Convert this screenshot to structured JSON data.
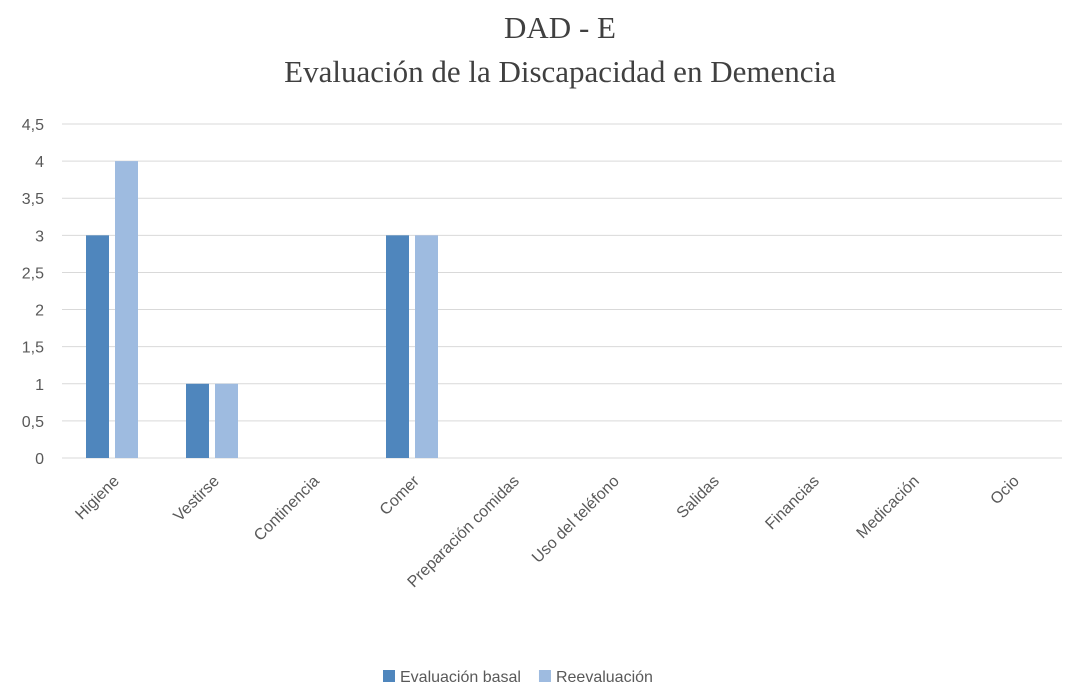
{
  "chart_data": {
    "type": "bar",
    "title": "DAD - E",
    "subtitle": "Evaluación de la Discapacidad en Demencia",
    "categories": [
      "Higiene",
      "Vestirse",
      "Continencia",
      "Comer",
      "Preparación comidas",
      "Uso del teléfono",
      "Salidas",
      "Financias",
      "Medicación",
      "Ocio"
    ],
    "series": [
      {
        "name": "Evaluación basal",
        "color": "#4f86bd",
        "values": [
          3,
          1,
          0,
          3,
          0,
          0,
          0,
          0,
          0,
          0
        ]
      },
      {
        "name": "Reevaluación",
        "color": "#9ebbe0",
        "values": [
          4,
          1,
          0,
          3,
          0,
          0,
          0,
          0,
          0,
          0
        ]
      }
    ],
    "ylim": [
      0,
      4.5
    ],
    "yticks": [
      0,
      {
        "value": 0.5,
        "label": "0,5"
      },
      1,
      {
        "value": 1.5,
        "label": "1,5"
      },
      2,
      {
        "value": 2.5,
        "label": "2,5"
      },
      3,
      {
        "value": 3.5,
        "label": "3,5"
      },
      4,
      {
        "value": 4.5,
        "label": "4,5"
      }
    ],
    "grid": true,
    "legend": "bottom"
  }
}
